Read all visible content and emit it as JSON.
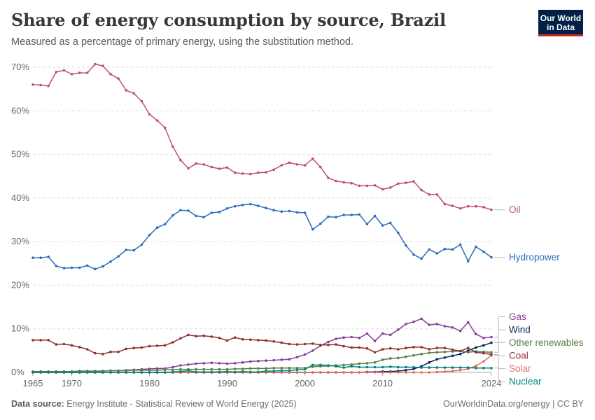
{
  "header": {
    "title": "Share of energy consumption by source, Brazil",
    "subtitle": "Measured as a percentage of primary energy, using the substitution method."
  },
  "logo": {
    "line1": "Our World",
    "line2": "in Data"
  },
  "footer": {
    "source_label": "Data source:",
    "source_text": "Energy Institute - Statistical Review of World Energy (2025)",
    "url": "OurWorldinData.org/energy | CC BY"
  },
  "chart_data": {
    "type": "line",
    "x": [
      1965,
      1966,
      1967,
      1968,
      1969,
      1970,
      1971,
      1972,
      1973,
      1974,
      1975,
      1976,
      1977,
      1978,
      1979,
      1980,
      1981,
      1982,
      1983,
      1984,
      1985,
      1986,
      1987,
      1988,
      1989,
      1990,
      1991,
      1992,
      1993,
      1994,
      1995,
      1996,
      1997,
      1998,
      1999,
      2000,
      2001,
      2002,
      2003,
      2004,
      2005,
      2006,
      2007,
      2008,
      2009,
      2010,
      2011,
      2012,
      2013,
      2014,
      2015,
      2016,
      2017,
      2018,
      2019,
      2020,
      2021,
      2022,
      2023,
      2024
    ],
    "xticks": [
      1965,
      1970,
      1980,
      1990,
      2000,
      2010,
      2024
    ],
    "ylim": [
      0,
      70
    ],
    "yticks": [
      0,
      10,
      20,
      30,
      40,
      50,
      60,
      70
    ],
    "ytick_labels": [
      "0%",
      "10%",
      "20%",
      "30%",
      "40%",
      "50%",
      "60%",
      "70%"
    ],
    "grid": true,
    "legend_placement": "right",
    "series": [
      {
        "name": "Oil",
        "color": "#c15065",
        "values": [
          66.0,
          65.9,
          65.7,
          68.9,
          69.3,
          68.4,
          68.7,
          68.7,
          70.7,
          70.3,
          68.4,
          67.4,
          64.7,
          64.0,
          62.2,
          59.2,
          57.8,
          56.1,
          51.8,
          48.7,
          46.8,
          47.9,
          47.7,
          47.1,
          46.7,
          47.0,
          45.8,
          45.6,
          45.5,
          45.8,
          45.9,
          46.5,
          47.5,
          48.1,
          47.7,
          47.5,
          49.0,
          47.1,
          44.6,
          43.9,
          43.6,
          43.4,
          42.8,
          42.8,
          42.9,
          42.0,
          42.4,
          43.3,
          43.5,
          43.8,
          41.8,
          40.8,
          40.8,
          38.6,
          38.2,
          37.6,
          38.1,
          38.1,
          37.9,
          37.3
        ]
      },
      {
        "name": "Hydropower",
        "color": "#2c6fbb",
        "values": [
          26.3,
          26.3,
          26.5,
          24.4,
          23.9,
          24.0,
          24.0,
          24.5,
          23.7,
          24.3,
          25.4,
          26.6,
          28.1,
          28.0,
          29.3,
          31.5,
          33.2,
          34.0,
          36.0,
          37.2,
          37.1,
          35.9,
          35.6,
          36.6,
          36.8,
          37.6,
          38.1,
          38.4,
          38.6,
          38.2,
          37.7,
          37.2,
          36.9,
          37.0,
          36.7,
          36.6,
          32.8,
          34.1,
          35.7,
          35.6,
          36.1,
          36.1,
          36.2,
          34.0,
          35.9,
          33.7,
          34.3,
          32.0,
          29.1,
          27.0,
          26.1,
          28.2,
          27.3,
          28.3,
          28.2,
          29.3,
          25.5,
          28.8,
          27.7,
          26.4
        ]
      },
      {
        "name": "Gas",
        "color": "#883f98",
        "values": [
          0.2,
          0.2,
          0.2,
          0.2,
          0.2,
          0.2,
          0.3,
          0.3,
          0.3,
          0.3,
          0.4,
          0.4,
          0.5,
          0.6,
          0.7,
          0.8,
          0.9,
          0.9,
          1.2,
          1.6,
          1.8,
          2.0,
          2.1,
          2.2,
          2.1,
          2.0,
          2.1,
          2.3,
          2.5,
          2.6,
          2.7,
          2.8,
          2.9,
          3.0,
          3.5,
          4.1,
          5.0,
          6.1,
          7.0,
          7.7,
          8.0,
          8.1,
          7.9,
          8.9,
          7.2,
          8.9,
          8.6,
          9.8,
          11.1,
          11.6,
          12.3,
          10.9,
          11.1,
          10.6,
          10.3,
          9.5,
          11.5,
          8.8,
          7.9,
          8.1
        ]
      },
      {
        "name": "Wind",
        "color": "#00295b",
        "values": [
          0,
          0,
          0,
          0,
          0,
          0,
          0,
          0,
          0,
          0,
          0,
          0,
          0,
          0,
          0,
          0,
          0,
          0,
          0,
          0,
          0,
          0,
          0,
          0,
          0,
          0,
          0,
          0,
          0,
          0,
          0,
          0,
          0,
          0,
          0,
          0,
          0,
          0,
          0,
          0,
          0,
          0,
          0,
          0.1,
          0.1,
          0.2,
          0.2,
          0.3,
          0.5,
          0.8,
          1.4,
          2.3,
          3.0,
          3.4,
          3.8,
          4.2,
          5.0,
          5.7,
          6.2,
          6.8
        ]
      },
      {
        "name": "Other renewables",
        "color": "#578145",
        "values": [
          0.2,
          0.2,
          0.2,
          0.2,
          0.2,
          0.2,
          0.3,
          0.3,
          0.3,
          0.3,
          0.4,
          0.4,
          0.4,
          0.5,
          0.5,
          0.5,
          0.5,
          0.6,
          0.6,
          0.7,
          0.7,
          0.7,
          0.7,
          0.7,
          0.7,
          0.7,
          0.8,
          0.8,
          0.9,
          0.9,
          0.9,
          1.0,
          1.0,
          1.0,
          1.0,
          1.0,
          1.3,
          1.4,
          1.5,
          1.6,
          1.7,
          1.8,
          2.0,
          2.1,
          2.3,
          2.9,
          3.2,
          3.3,
          3.6,
          3.9,
          4.2,
          4.5,
          4.6,
          4.7,
          4.8,
          4.9,
          4.6,
          4.8,
          4.7,
          4.6
        ]
      },
      {
        "name": "Solar",
        "color": "#e56e5a",
        "values": [
          0,
          0,
          0,
          0,
          0,
          0,
          0,
          0,
          0,
          0,
          0,
          0,
          0,
          0,
          0,
          0,
          0,
          0,
          0,
          0,
          0,
          0,
          0,
          0,
          0,
          0,
          0,
          0,
          0,
          0,
          0,
          0,
          0,
          0,
          0,
          0,
          0,
          0,
          0,
          0,
          0,
          0,
          0,
          0,
          0,
          0,
          0,
          0,
          0,
          0,
          0,
          0,
          0.1,
          0.2,
          0.3,
          0.5,
          0.8,
          1.5,
          2.5,
          3.9
        ]
      },
      {
        "name": "Coal",
        "color": "#8c2f2f",
        "values": [
          7.4,
          7.4,
          7.4,
          6.4,
          6.5,
          6.2,
          5.8,
          5.3,
          4.4,
          4.2,
          4.7,
          4.7,
          5.4,
          5.6,
          5.7,
          6.0,
          6.1,
          6.2,
          6.9,
          7.8,
          8.6,
          8.3,
          8.4,
          8.2,
          7.9,
          7.3,
          8.0,
          7.6,
          7.5,
          7.4,
          7.3,
          7.1,
          6.8,
          6.5,
          6.4,
          6.5,
          6.6,
          6.3,
          6.3,
          6.4,
          6.0,
          5.7,
          5.7,
          5.5,
          4.6,
          5.3,
          5.5,
          5.3,
          5.6,
          5.8,
          5.8,
          5.3,
          5.6,
          5.6,
          5.2,
          4.9,
          5.6,
          4.6,
          4.4,
          4.1
        ]
      },
      {
        "name": "Nuclear",
        "color": "#00847e",
        "values": [
          0,
          0,
          0,
          0,
          0,
          0,
          0,
          0,
          0,
          0,
          0,
          0,
          0,
          0,
          0,
          0,
          0,
          0,
          0.1,
          0.2,
          0.4,
          0.1,
          0.1,
          0.1,
          0.1,
          0.2,
          0.1,
          0.2,
          0.1,
          0.1,
          0.3,
          0.3,
          0.4,
          0.4,
          0.6,
          0.7,
          1.7,
          1.7,
          1.6,
          1.4,
          1.1,
          1.4,
          1.2,
          1.2,
          1.2,
          1.2,
          1.3,
          1.2,
          1.2,
          1.2,
          1.1,
          1.1,
          1.1,
          1.1,
          1.1,
          1.1,
          1.1,
          1.0,
          1.0,
          1.0
        ]
      }
    ]
  }
}
